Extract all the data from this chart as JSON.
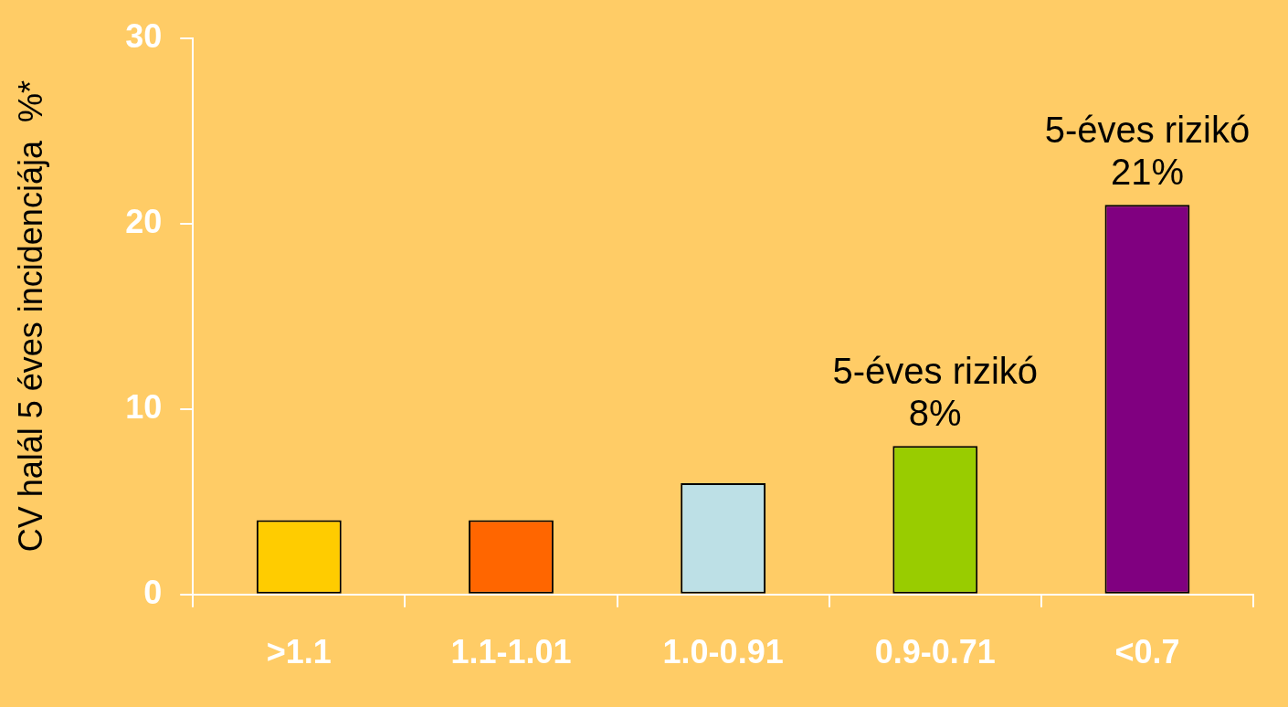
{
  "chart_data": {
    "type": "bar",
    "ylabel": "CV halál 5 éves incidenciája  %*",
    "categories": [
      ">1.1",
      "1.1-1.01",
      "1.0-0.91",
      "0.9-0.71",
      "<0.7"
    ],
    "values": [
      4,
      4,
      6,
      8,
      21
    ],
    "colors": [
      "#ffcc00",
      "#ff6600",
      "#bde0e6",
      "#99cc00",
      "#800080"
    ],
    "ylim": [
      0,
      30
    ],
    "yticks": [
      0,
      10,
      20,
      30
    ],
    "grid": false,
    "legend": false,
    "annotations": [
      {
        "text": "5-éves rizikó\n8%",
        "x": "0.9-0.71",
        "y": 8
      },
      {
        "text": "5-éves rizikó\n21%",
        "x": "<0.7",
        "y": 21
      }
    ]
  }
}
